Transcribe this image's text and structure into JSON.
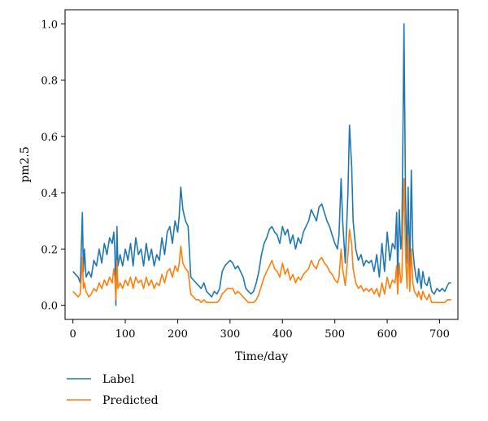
{
  "chart_data": {
    "type": "line",
    "xlabel": "Time/day",
    "ylabel": "pm2.5",
    "xlim": [
      -15,
      735
    ],
    "ylim": [
      -0.05,
      1.05
    ],
    "xticks": [
      0,
      100,
      200,
      300,
      400,
      500,
      600,
      700
    ],
    "yticks": [
      0.0,
      0.2,
      0.4,
      0.6,
      0.8,
      1.0
    ],
    "ytick_labels": [
      "0.0",
      "0.2",
      "0.4",
      "0.6",
      "0.8",
      "1.0"
    ],
    "grid": false,
    "legend_position": "below",
    "colors": {
      "label": "#1f77b4",
      "predicted": "#ff7f0e"
    },
    "series": [
      {
        "name": "Label",
        "color": "#1f77b4",
        "points": [
          [
            0,
            0.12
          ],
          [
            5,
            0.11
          ],
          [
            10,
            0.1
          ],
          [
            14,
            0.08
          ],
          [
            18,
            0.33
          ],
          [
            20,
            0.12
          ],
          [
            22,
            0.2
          ],
          [
            25,
            0.1
          ],
          [
            30,
            0.12
          ],
          [
            35,
            0.1
          ],
          [
            40,
            0.16
          ],
          [
            45,
            0.14
          ],
          [
            50,
            0.2
          ],
          [
            55,
            0.15
          ],
          [
            60,
            0.22
          ],
          [
            65,
            0.18
          ],
          [
            70,
            0.24
          ],
          [
            75,
            0.22
          ],
          [
            78,
            0.26
          ],
          [
            80,
            0.2
          ],
          [
            82,
            0.0
          ],
          [
            84,
            0.28
          ],
          [
            86,
            0.14
          ],
          [
            90,
            0.18
          ],
          [
            95,
            0.14
          ],
          [
            100,
            0.2
          ],
          [
            105,
            0.16
          ],
          [
            110,
            0.22
          ],
          [
            115,
            0.14
          ],
          [
            120,
            0.24
          ],
          [
            125,
            0.18
          ],
          [
            130,
            0.2
          ],
          [
            135,
            0.14
          ],
          [
            140,
            0.22
          ],
          [
            145,
            0.16
          ],
          [
            150,
            0.2
          ],
          [
            155,
            0.14
          ],
          [
            160,
            0.18
          ],
          [
            165,
            0.16
          ],
          [
            170,
            0.24
          ],
          [
            175,
            0.18
          ],
          [
            180,
            0.26
          ],
          [
            185,
            0.28
          ],
          [
            190,
            0.22
          ],
          [
            195,
            0.3
          ],
          [
            200,
            0.26
          ],
          [
            203,
            0.32
          ],
          [
            206,
            0.42
          ],
          [
            210,
            0.34
          ],
          [
            215,
            0.3
          ],
          [
            220,
            0.28
          ],
          [
            225,
            0.1
          ],
          [
            230,
            0.09
          ],
          [
            235,
            0.08
          ],
          [
            240,
            0.07
          ],
          [
            245,
            0.06
          ],
          [
            250,
            0.08
          ],
          [
            255,
            0.05
          ],
          [
            260,
            0.04
          ],
          [
            265,
            0.03
          ],
          [
            270,
            0.05
          ],
          [
            275,
            0.04
          ],
          [
            280,
            0.06
          ],
          [
            285,
            0.12
          ],
          [
            290,
            0.14
          ],
          [
            295,
            0.15
          ],
          [
            300,
            0.16
          ],
          [
            305,
            0.15
          ],
          [
            310,
            0.13
          ],
          [
            315,
            0.14
          ],
          [
            320,
            0.12
          ],
          [
            325,
            0.1
          ],
          [
            330,
            0.06
          ],
          [
            335,
            0.05
          ],
          [
            340,
            0.04
          ],
          [
            345,
            0.05
          ],
          [
            350,
            0.08
          ],
          [
            355,
            0.12
          ],
          [
            360,
            0.18
          ],
          [
            365,
            0.22
          ],
          [
            370,
            0.24
          ],
          [
            375,
            0.27
          ],
          [
            380,
            0.28
          ],
          [
            385,
            0.26
          ],
          [
            390,
            0.25
          ],
          [
            395,
            0.22
          ],
          [
            400,
            0.28
          ],
          [
            405,
            0.25
          ],
          [
            410,
            0.27
          ],
          [
            415,
            0.22
          ],
          [
            420,
            0.25
          ],
          [
            425,
            0.2
          ],
          [
            430,
            0.24
          ],
          [
            435,
            0.22
          ],
          [
            440,
            0.26
          ],
          [
            445,
            0.28
          ],
          [
            450,
            0.3
          ],
          [
            455,
            0.34
          ],
          [
            460,
            0.32
          ],
          [
            465,
            0.3
          ],
          [
            470,
            0.35
          ],
          [
            475,
            0.36
          ],
          [
            480,
            0.33
          ],
          [
            485,
            0.3
          ],
          [
            490,
            0.28
          ],
          [
            495,
            0.25
          ],
          [
            500,
            0.22
          ],
          [
            505,
            0.2
          ],
          [
            508,
            0.25
          ],
          [
            512,
            0.45
          ],
          [
            515,
            0.3
          ],
          [
            520,
            0.15
          ],
          [
            525,
            0.4
          ],
          [
            528,
            0.64
          ],
          [
            532,
            0.5
          ],
          [
            535,
            0.3
          ],
          [
            540,
            0.2
          ],
          [
            545,
            0.16
          ],
          [
            550,
            0.18
          ],
          [
            555,
            0.14
          ],
          [
            560,
            0.16
          ],
          [
            565,
            0.15
          ],
          [
            570,
            0.16
          ],
          [
            575,
            0.12
          ],
          [
            580,
            0.18
          ],
          [
            585,
            0.1
          ],
          [
            590,
            0.22
          ],
          [
            595,
            0.12
          ],
          [
            600,
            0.26
          ],
          [
            605,
            0.16
          ],
          [
            610,
            0.22
          ],
          [
            615,
            0.2
          ],
          [
            618,
            0.33
          ],
          [
            620,
            0.1
          ],
          [
            623,
            0.34
          ],
          [
            626,
            0.2
          ],
          [
            628,
            0.25
          ],
          [
            630,
            0.6
          ],
          [
            632,
            1.0
          ],
          [
            635,
            0.38
          ],
          [
            638,
            0.15
          ],
          [
            640,
            0.42
          ],
          [
            643,
            0.12
          ],
          [
            646,
            0.48
          ],
          [
            649,
            0.2
          ],
          [
            652,
            0.14
          ],
          [
            655,
            0.1
          ],
          [
            658,
            0.08
          ],
          [
            660,
            0.13
          ],
          [
            665,
            0.06
          ],
          [
            668,
            0.12
          ],
          [
            672,
            0.08
          ],
          [
            676,
            0.07
          ],
          [
            680,
            0.1
          ],
          [
            685,
            0.05
          ],
          [
            690,
            0.04
          ],
          [
            695,
            0.06
          ],
          [
            700,
            0.05
          ],
          [
            705,
            0.06
          ],
          [
            710,
            0.05
          ],
          [
            715,
            0.07
          ],
          [
            718,
            0.08
          ],
          [
            722,
            0.08
          ]
        ]
      },
      {
        "name": "Predicted",
        "color": "#ff7f0e",
        "points": [
          [
            0,
            0.05
          ],
          [
            5,
            0.04
          ],
          [
            10,
            0.03
          ],
          [
            14,
            0.04
          ],
          [
            18,
            0.17
          ],
          [
            20,
            0.06
          ],
          [
            22,
            0.08
          ],
          [
            25,
            0.05
          ],
          [
            30,
            0.03
          ],
          [
            35,
            0.04
          ],
          [
            40,
            0.06
          ],
          [
            45,
            0.05
          ],
          [
            50,
            0.08
          ],
          [
            55,
            0.06
          ],
          [
            60,
            0.09
          ],
          [
            65,
            0.07
          ],
          [
            70,
            0.1
          ],
          [
            75,
            0.08
          ],
          [
            78,
            0.13
          ],
          [
            80,
            0.1
          ],
          [
            82,
            0.02
          ],
          [
            84,
            0.16
          ],
          [
            86,
            0.06
          ],
          [
            90,
            0.08
          ],
          [
            95,
            0.06
          ],
          [
            100,
            0.09
          ],
          [
            105,
            0.07
          ],
          [
            110,
            0.1
          ],
          [
            115,
            0.06
          ],
          [
            120,
            0.1
          ],
          [
            125,
            0.08
          ],
          [
            130,
            0.09
          ],
          [
            135,
            0.06
          ],
          [
            140,
            0.1
          ],
          [
            145,
            0.07
          ],
          [
            150,
            0.09
          ],
          [
            155,
            0.06
          ],
          [
            160,
            0.08
          ],
          [
            165,
            0.07
          ],
          [
            170,
            0.11
          ],
          [
            175,
            0.08
          ],
          [
            180,
            0.12
          ],
          [
            185,
            0.13
          ],
          [
            190,
            0.1
          ],
          [
            195,
            0.14
          ],
          [
            200,
            0.12
          ],
          [
            203,
            0.15
          ],
          [
            206,
            0.21
          ],
          [
            210,
            0.15
          ],
          [
            215,
            0.13
          ],
          [
            220,
            0.12
          ],
          [
            225,
            0.04
          ],
          [
            230,
            0.03
          ],
          [
            235,
            0.02
          ],
          [
            240,
            0.02
          ],
          [
            245,
            0.01
          ],
          [
            250,
            0.02
          ],
          [
            255,
            0.01
          ],
          [
            260,
            0.01
          ],
          [
            265,
            0.01
          ],
          [
            270,
            0.01
          ],
          [
            275,
            0.01
          ],
          [
            280,
            0.02
          ],
          [
            285,
            0.04
          ],
          [
            290,
            0.05
          ],
          [
            295,
            0.06
          ],
          [
            300,
            0.06
          ],
          [
            305,
            0.06
          ],
          [
            310,
            0.04
          ],
          [
            315,
            0.05
          ],
          [
            320,
            0.04
          ],
          [
            325,
            0.03
          ],
          [
            330,
            0.02
          ],
          [
            335,
            0.01
          ],
          [
            340,
            0.01
          ],
          [
            345,
            0.01
          ],
          [
            350,
            0.02
          ],
          [
            355,
            0.04
          ],
          [
            360,
            0.07
          ],
          [
            365,
            0.1
          ],
          [
            370,
            0.12
          ],
          [
            375,
            0.14
          ],
          [
            380,
            0.16
          ],
          [
            385,
            0.13
          ],
          [
            390,
            0.12
          ],
          [
            395,
            0.1
          ],
          [
            400,
            0.15
          ],
          [
            405,
            0.11
          ],
          [
            410,
            0.13
          ],
          [
            415,
            0.09
          ],
          [
            420,
            0.11
          ],
          [
            425,
            0.08
          ],
          [
            430,
            0.1
          ],
          [
            435,
            0.09
          ],
          [
            440,
            0.11
          ],
          [
            445,
            0.12
          ],
          [
            450,
            0.13
          ],
          [
            455,
            0.16
          ],
          [
            460,
            0.14
          ],
          [
            465,
            0.13
          ],
          [
            470,
            0.16
          ],
          [
            475,
            0.17
          ],
          [
            480,
            0.15
          ],
          [
            485,
            0.14
          ],
          [
            490,
            0.12
          ],
          [
            495,
            0.11
          ],
          [
            500,
            0.09
          ],
          [
            505,
            0.08
          ],
          [
            508,
            0.1
          ],
          [
            512,
            0.2
          ],
          [
            515,
            0.13
          ],
          [
            520,
            0.07
          ],
          [
            525,
            0.18
          ],
          [
            528,
            0.27
          ],
          [
            532,
            0.22
          ],
          [
            535,
            0.13
          ],
          [
            540,
            0.08
          ],
          [
            545,
            0.06
          ],
          [
            550,
            0.07
          ],
          [
            555,
            0.05
          ],
          [
            560,
            0.06
          ],
          [
            565,
            0.05
          ],
          [
            570,
            0.06
          ],
          [
            575,
            0.04
          ],
          [
            580,
            0.06
          ],
          [
            585,
            0.03
          ],
          [
            590,
            0.08
          ],
          [
            595,
            0.04
          ],
          [
            600,
            0.1
          ],
          [
            605,
            0.06
          ],
          [
            610,
            0.09
          ],
          [
            615,
            0.08
          ],
          [
            618,
            0.14
          ],
          [
            620,
            0.04
          ],
          [
            623,
            0.15
          ],
          [
            626,
            0.08
          ],
          [
            628,
            0.1
          ],
          [
            630,
            0.3
          ],
          [
            632,
            0.45
          ],
          [
            635,
            0.18
          ],
          [
            638,
            0.06
          ],
          [
            640,
            0.25
          ],
          [
            643,
            0.05
          ],
          [
            646,
            0.2
          ],
          [
            649,
            0.08
          ],
          [
            652,
            0.05
          ],
          [
            655,
            0.04
          ],
          [
            658,
            0.03
          ],
          [
            660,
            0.05
          ],
          [
            665,
            0.02
          ],
          [
            668,
            0.05
          ],
          [
            672,
            0.03
          ],
          [
            676,
            0.02
          ],
          [
            680,
            0.04
          ],
          [
            685,
            0.01
          ],
          [
            690,
            0.01
          ],
          [
            695,
            0.01
          ],
          [
            700,
            0.01
          ],
          [
            705,
            0.01
          ],
          [
            710,
            0.01
          ],
          [
            715,
            0.02
          ],
          [
            718,
            0.02
          ],
          [
            722,
            0.02
          ]
        ]
      }
    ]
  }
}
